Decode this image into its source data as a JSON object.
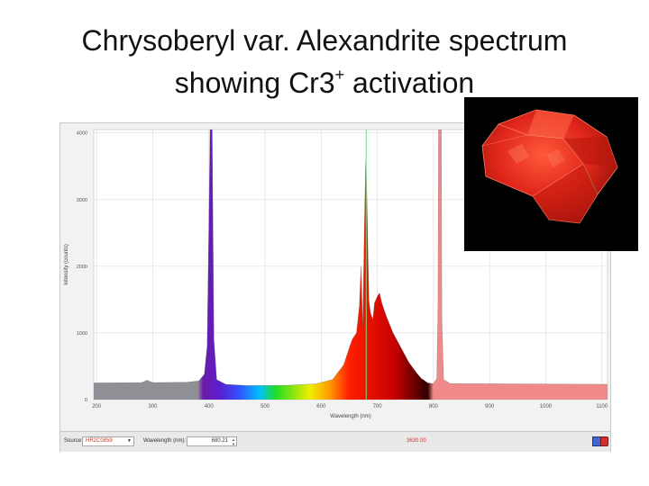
{
  "slide": {
    "title_line1": "Chrysoberyl var. Alexandrite spectrum",
    "title_line2_pre": "showing Cr3",
    "title_line2_sup": "+",
    "title_line2_post": " activation"
  },
  "statusbar": {
    "source_label": "Source:",
    "source_value": "HR2C0859",
    "wavelength_label": "Wavelength (nm):",
    "wavelength_value": "680.21",
    "intensity_readout": "3630.00"
  },
  "colors": {
    "baseline_fill": "#8f8f96",
    "nir_fill": "#f08a8a",
    "plot_bg": "#ffffff",
    "grid": "#dcdcdc"
  },
  "chart_data": {
    "type": "line",
    "xlabel": "Wavelength (nm)",
    "ylabel": "Intensity (counts)",
    "xlim": [
      195,
      1110
    ],
    "ylim": [
      0,
      4050
    ],
    "x_ticks": [
      200,
      300,
      400,
      500,
      600,
      700,
      800,
      900,
      1000,
      1100
    ],
    "y_ticks": [
      0,
      1000,
      2000,
      3000,
      4000
    ],
    "grid": true,
    "cursor_wavelength": 680.21,
    "points": [
      [
        195,
        250
      ],
      [
        280,
        255
      ],
      [
        290,
        290
      ],
      [
        300,
        255
      ],
      [
        360,
        260
      ],
      [
        382,
        280
      ],
      [
        392,
        380
      ],
      [
        397,
        800
      ],
      [
        400,
        2600
      ],
      [
        402,
        4050
      ],
      [
        406,
        4050
      ],
      [
        409,
        900
      ],
      [
        414,
        300
      ],
      [
        430,
        230
      ],
      [
        470,
        210
      ],
      [
        540,
        215
      ],
      [
        590,
        235
      ],
      [
        620,
        300
      ],
      [
        640,
        520
      ],
      [
        655,
        900
      ],
      [
        663,
        1000
      ],
      [
        668,
        1400
      ],
      [
        671,
        2000
      ],
      [
        674,
        1100
      ],
      [
        677,
        2600
      ],
      [
        679,
        3500
      ],
      [
        680,
        3630
      ],
      [
        682,
        2800
      ],
      [
        685,
        1500
      ],
      [
        688,
        1300
      ],
      [
        692,
        1200
      ],
      [
        695,
        1450
      ],
      [
        700,
        1550
      ],
      [
        704,
        1600
      ],
      [
        708,
        1450
      ],
      [
        716,
        1250
      ],
      [
        728,
        1000
      ],
      [
        742,
        780
      ],
      [
        756,
        560
      ],
      [
        770,
        400
      ],
      [
        778,
        320
      ],
      [
        790,
        250
      ],
      [
        800,
        240
      ],
      [
        806,
        320
      ],
      [
        808,
        1400
      ],
      [
        809,
        4050
      ],
      [
        814,
        4050
      ],
      [
        815,
        1200
      ],
      [
        818,
        300
      ],
      [
        830,
        240
      ],
      [
        1110,
        230
      ]
    ]
  }
}
